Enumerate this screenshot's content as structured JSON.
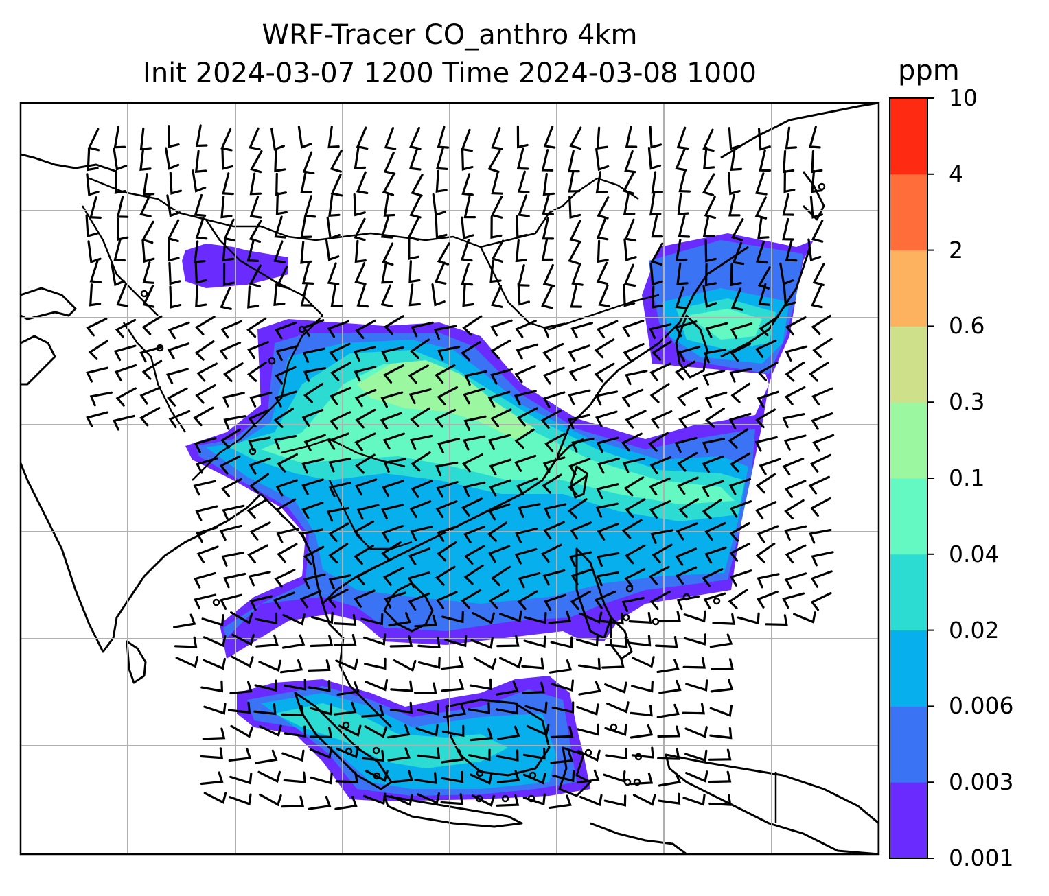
{
  "title_line1": "WRF-Tracer CO_anthro 4km",
  "title_line2": "Init 2024-03-07 1200 Time 2024-03-08 1000",
  "colorbar": {
    "unit": "ppm",
    "levels": [
      "0.001",
      "0.003",
      "0.006",
      "0.02",
      "0.04",
      "0.1",
      "0.3",
      "0.6",
      "2",
      "4",
      "10"
    ],
    "colors": [
      "#6a2bff",
      "#3a74f5",
      "#07b0ec",
      "#2cdcd2",
      "#64f8c2",
      "#9bf7a0",
      "#cfe08a",
      "#fdb25f",
      "#ff6e3a",
      "#ff2a12"
    ]
  },
  "map": {
    "field": "CO_anthro tracer concentration",
    "overlays": [
      "coastlines",
      "country borders",
      "lat/lon gridlines",
      "wind barbs"
    ]
  }
}
